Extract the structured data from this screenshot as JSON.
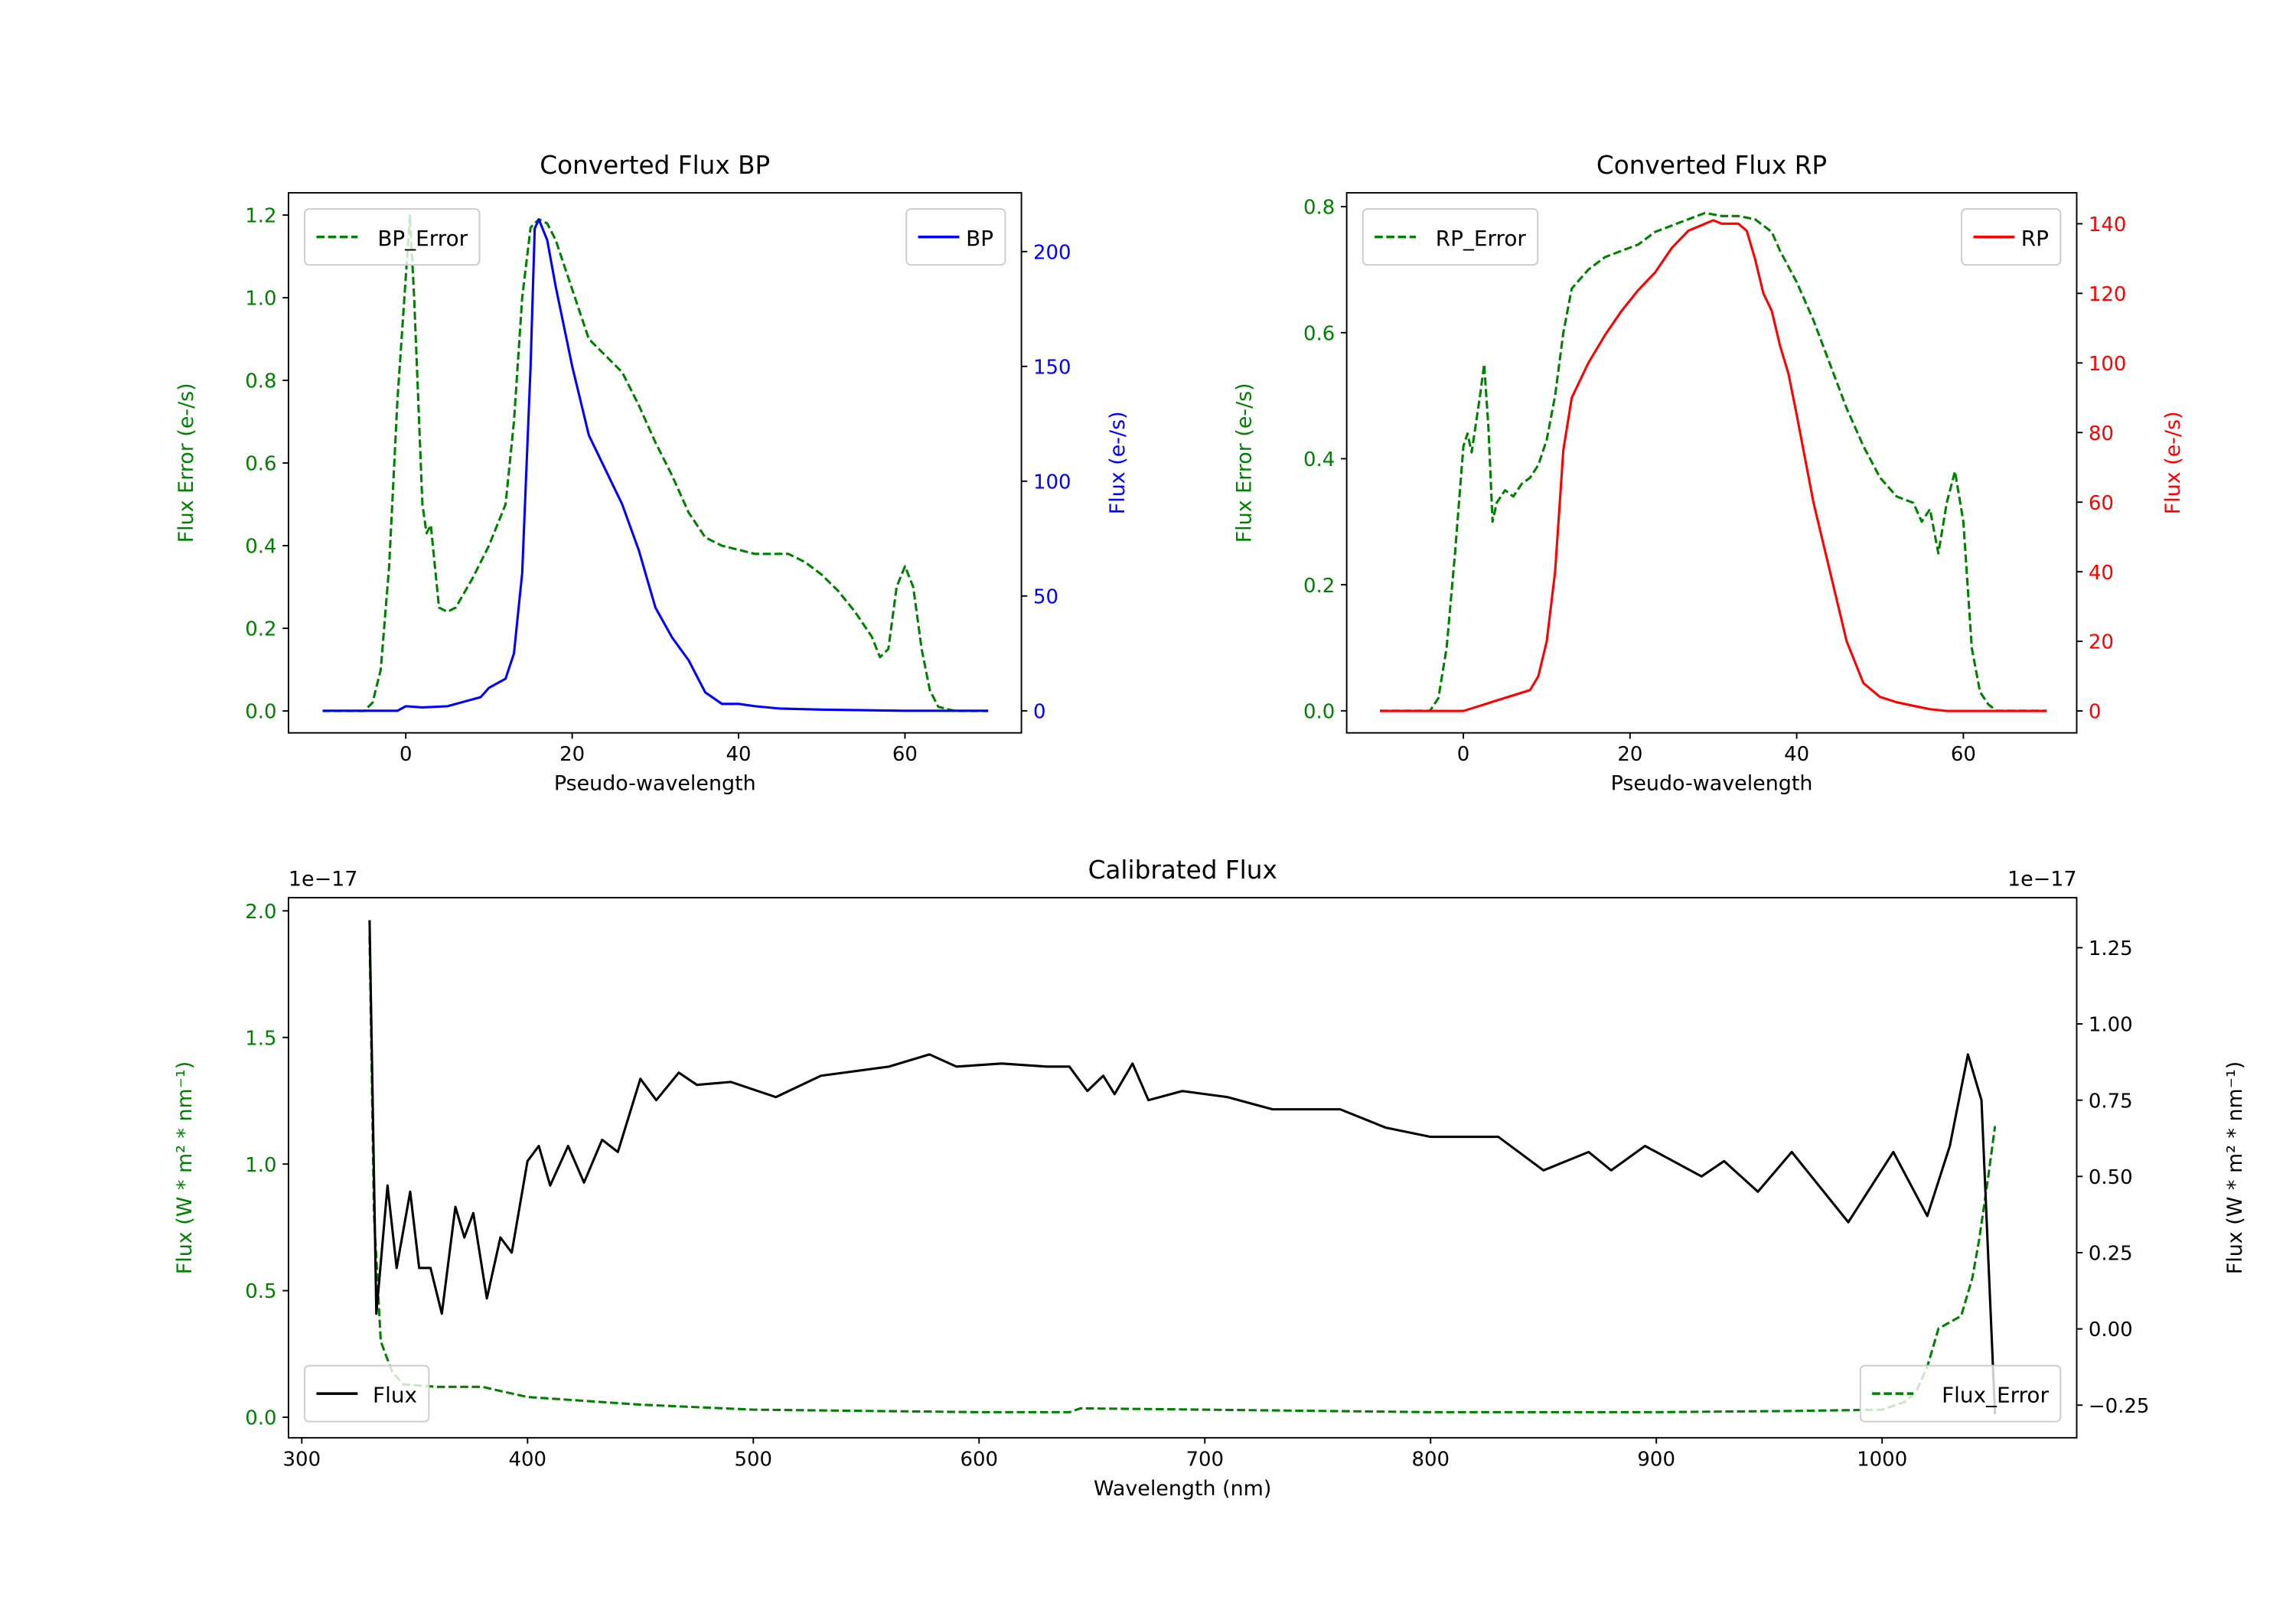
{
  "chart_data": [
    {
      "type": "line",
      "title": "Converted Flux BP",
      "xlabel": "Pseudo-wavelength",
      "ylabel_left": "Flux Error (e-/s)",
      "ylabel_right": "Flux (e-/s)",
      "xlim": [
        -14.1,
        74.0
      ],
      "ylim_left": [
        -0.053,
        1.254
      ],
      "ylim_right": [
        -9.6,
        225.6
      ],
      "xticks": [
        0,
        20,
        40,
        60
      ],
      "yticks_left": [
        "0.0",
        "0.2",
        "0.4",
        "0.6",
        "0.8",
        "1.0",
        "1.2"
      ],
      "yticks_right": [
        "0",
        "50",
        "100",
        "150",
        "200"
      ],
      "left_color": "#008000",
      "right_color": "#0000ff",
      "legend_left": {
        "label": "BP_Error",
        "placement": "upper-left"
      },
      "legend_right": {
        "label": "BP",
        "placement": "upper-right"
      },
      "series": [
        {
          "name": "BP_Error",
          "axis": "left",
          "style": "dashed",
          "color": "#008000",
          "x": [
            -10,
            -5,
            -4,
            -3,
            -2,
            -1,
            0,
            0.5,
            1,
            2,
            2.5,
            3,
            4,
            5,
            6,
            8,
            10,
            12,
            13,
            14,
            15,
            16,
            17,
            18,
            20,
            22,
            24,
            26,
            28,
            30,
            32,
            34,
            36,
            38,
            40,
            42,
            44,
            46,
            48,
            50,
            52,
            54,
            56,
            57,
            58,
            59,
            60,
            61,
            62,
            63,
            64,
            66,
            70
          ],
          "y": [
            0,
            0,
            0.02,
            0.1,
            0.35,
            0.75,
            1.05,
            1.2,
            1.0,
            0.5,
            0.43,
            0.45,
            0.25,
            0.24,
            0.25,
            0.32,
            0.4,
            0.5,
            0.7,
            1.0,
            1.17,
            1.19,
            1.18,
            1.14,
            1.02,
            0.9,
            0.86,
            0.82,
            0.74,
            0.65,
            0.57,
            0.48,
            0.42,
            0.4,
            0.39,
            0.38,
            0.38,
            0.38,
            0.36,
            0.33,
            0.29,
            0.24,
            0.18,
            0.13,
            0.15,
            0.3,
            0.35,
            0.3,
            0.15,
            0.05,
            0.01,
            0,
            0
          ]
        },
        {
          "name": "BP",
          "axis": "right",
          "style": "solid",
          "color": "#0000ff",
          "x": [
            -10,
            -1,
            0,
            2,
            5,
            7,
            9,
            10,
            12,
            13,
            14,
            15,
            15.5,
            16,
            17,
            18,
            20,
            22,
            24,
            26,
            28,
            30,
            32,
            34,
            36,
            38,
            40,
            42,
            45,
            50,
            55,
            60,
            70
          ],
          "y": [
            0,
            0,
            2,
            1.5,
            2,
            4,
            6,
            10,
            14,
            25,
            60,
            150,
            210,
            214,
            205,
            185,
            150,
            120,
            105,
            90,
            70,
            45,
            32,
            22,
            8,
            3,
            3,
            2,
            1,
            0.5,
            0.3,
            0,
            0
          ]
        }
      ]
    },
    {
      "type": "line",
      "title": "Converted Flux RP",
      "xlabel": "Pseudo-wavelength",
      "ylabel_left": "Flux Error (e-/s)",
      "ylabel_right": "Flux (e-/s)",
      "xlim": [
        -14.0,
        73.6
      ],
      "ylim_left": [
        -0.035,
        0.822
      ],
      "ylim_right": [
        -6.3,
        148.9
      ],
      "xticks": [
        0,
        20,
        40,
        60
      ],
      "yticks_left": [
        "0.0",
        "0.2",
        "0.4",
        "0.6",
        "0.8"
      ],
      "yticks_right": [
        "0",
        "20",
        "40",
        "60",
        "80",
        "100",
        "120",
        "140"
      ],
      "left_color": "#008000",
      "right_color": "#ff0000",
      "legend_left": {
        "label": "RP_Error",
        "placement": "upper-left"
      },
      "legend_right": {
        "label": "RP",
        "placement": "upper-right"
      },
      "series": [
        {
          "name": "RP_Error",
          "axis": "left",
          "style": "dashed",
          "color": "#008000",
          "x": [
            -10,
            -4,
            -3,
            -2,
            -1,
            0,
            0.5,
            1,
            2,
            2.5,
            3,
            3.5,
            4,
            5,
            6,
            7,
            8,
            9,
            10,
            11,
            12,
            13,
            15,
            17,
            19,
            21,
            23,
            25,
            27,
            29,
            31,
            33,
            35,
            37,
            38,
            40,
            42,
            44,
            46,
            48,
            50,
            52,
            54,
            55,
            56,
            57,
            58,
            59,
            60,
            61,
            62,
            63,
            64,
            70
          ],
          "y": [
            0,
            0,
            0.02,
            0.1,
            0.25,
            0.42,
            0.44,
            0.41,
            0.5,
            0.55,
            0.45,
            0.3,
            0.33,
            0.35,
            0.34,
            0.36,
            0.37,
            0.39,
            0.43,
            0.5,
            0.6,
            0.67,
            0.7,
            0.72,
            0.73,
            0.74,
            0.76,
            0.77,
            0.78,
            0.79,
            0.785,
            0.785,
            0.78,
            0.76,
            0.73,
            0.68,
            0.62,
            0.55,
            0.48,
            0.42,
            0.37,
            0.34,
            0.33,
            0.3,
            0.32,
            0.25,
            0.33,
            0.38,
            0.3,
            0.1,
            0.03,
            0.01,
            0,
            0
          ]
        },
        {
          "name": "RP",
          "axis": "right",
          "style": "solid",
          "color": "#ff0000",
          "x": [
            -10,
            0,
            2,
            4,
            6,
            8,
            9,
            10,
            11,
            12,
            13,
            15,
            17,
            19,
            21,
            23,
            25,
            27,
            29,
            30,
            31,
            33,
            34,
            35,
            36,
            37,
            38,
            39,
            40,
            42,
            44,
            46,
            48,
            50,
            52,
            54,
            56,
            58,
            70
          ],
          "y": [
            0,
            0,
            1.5,
            3,
            4.5,
            6,
            10,
            20,
            40,
            75,
            90,
            100,
            108,
            115,
            121,
            126,
            133,
            138,
            140,
            141,
            140,
            140,
            138,
            130,
            120,
            115,
            105,
            97,
            85,
            60,
            40,
            20,
            8,
            4,
            2.5,
            1.5,
            0.5,
            0,
            0
          ]
        }
      ]
    },
    {
      "type": "line",
      "title": "Calibrated Flux",
      "xlabel": "Wavelength (nm)",
      "ylabel_left": "Flux (W * m² * nm⁻¹)",
      "ylabel_right": "Flux (W * m² * nm⁻¹)",
      "offset_left": "1e−17",
      "offset_right": "1e−17",
      "xlim": [
        294.1,
        1086.2
      ],
      "ylim_left": [
        -0.081,
        2.052
      ],
      "ylim_right": [
        -0.357,
        1.414
      ],
      "xticks": [
        300,
        400,
        500,
        600,
        700,
        800,
        900,
        1000
      ],
      "yticks_left": [
        "0.0",
        "0.5",
        "1.0",
        "1.5",
        "2.0"
      ],
      "yticks_right": [
        "−0.25",
        "0.00",
        "0.25",
        "0.50",
        "0.75",
        "1.00",
        "1.25"
      ],
      "left_color": "#008000",
      "right_color": "#000000",
      "legend_left": {
        "label": "Flux",
        "placement": "lower-left"
      },
      "legend_right": {
        "label": "Flux_Error",
        "placement": "lower-right"
      },
      "series": [
        {
          "name": "Flux_Error",
          "axis": "left",
          "style": "dashed",
          "color": "#008000",
          "x": [
            330,
            332,
            335,
            340,
            345,
            360,
            380,
            390,
            400,
            450,
            500,
            600,
            640,
            645,
            700,
            800,
            900,
            960,
            1000,
            1010,
            1015,
            1020,
            1025,
            1035,
            1040,
            1043,
            1047,
            1050
          ],
          "y": [
            1.9,
            0.8,
            0.3,
            0.18,
            0.13,
            0.12,
            0.12,
            0.1,
            0.08,
            0.05,
            0.03,
            0.02,
            0.02,
            0.035,
            0.03,
            0.02,
            0.02,
            0.025,
            0.03,
            0.06,
            0.1,
            0.2,
            0.35,
            0.4,
            0.55,
            0.7,
            0.95,
            1.15
          ]
        },
        {
          "name": "Flux",
          "axis": "right",
          "style": "solid",
          "color": "#000000",
          "x": [
            330,
            333,
            338,
            342,
            348,
            352,
            357,
            362,
            368,
            372,
            376,
            382,
            388,
            393,
            400,
            405,
            410,
            418,
            425,
            433,
            440,
            450,
            457,
            467,
            475,
            490,
            510,
            530,
            560,
            578,
            590,
            610,
            630,
            640,
            648,
            655,
            660,
            668,
            675,
            690,
            710,
            730,
            760,
            780,
            800,
            830,
            850,
            870,
            880,
            895,
            920,
            930,
            945,
            960,
            985,
            1005,
            1020,
            1030,
            1038,
            1044,
            1050
          ],
          "y": [
            1.34,
            0.05,
            0.47,
            0.2,
            0.45,
            0.2,
            0.2,
            0.05,
            0.4,
            0.3,
            0.38,
            0.1,
            0.3,
            0.25,
            0.55,
            0.6,
            0.47,
            0.6,
            0.48,
            0.62,
            0.58,
            0.82,
            0.75,
            0.84,
            0.8,
            0.81,
            0.76,
            0.83,
            0.86,
            0.9,
            0.86,
            0.87,
            0.86,
            0.86,
            0.78,
            0.83,
            0.77,
            0.87,
            0.75,
            0.78,
            0.76,
            0.72,
            0.72,
            0.66,
            0.63,
            0.63,
            0.52,
            0.58,
            0.52,
            0.6,
            0.5,
            0.55,
            0.45,
            0.58,
            0.35,
            0.58,
            0.37,
            0.6,
            0.9,
            0.75,
            -0.28
          ]
        }
      ]
    }
  ]
}
